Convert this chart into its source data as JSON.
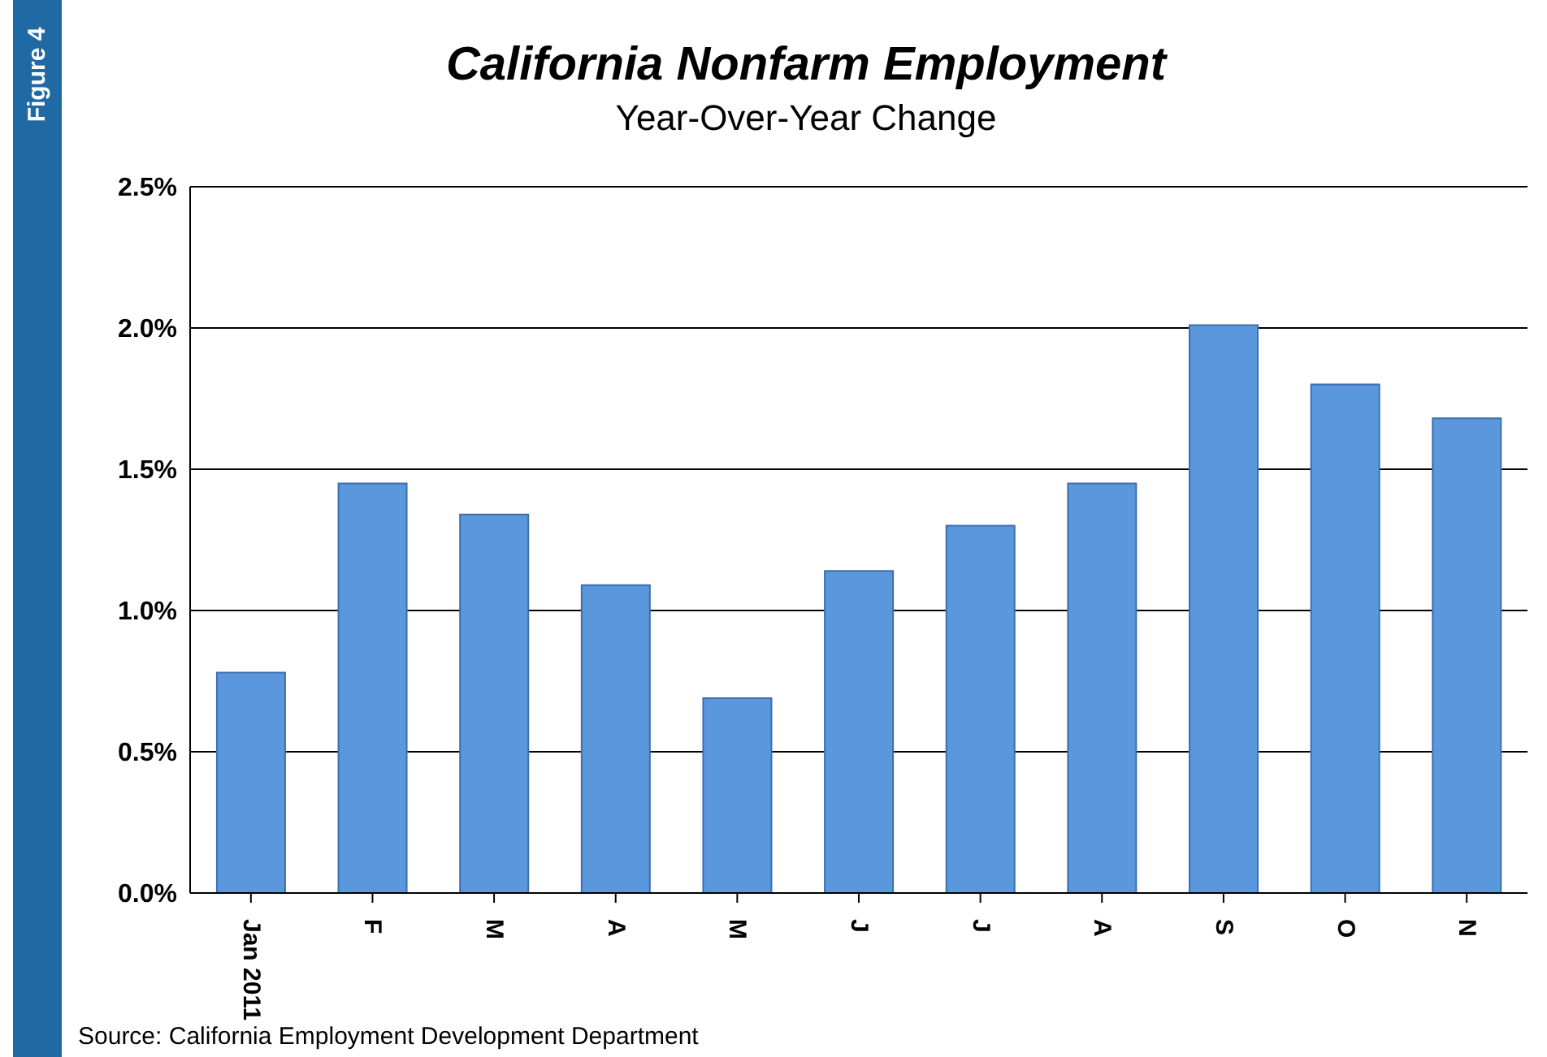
{
  "chart_data": {
    "type": "bar",
    "title": "California Nonfarm Employment",
    "subtitle": "Year-Over-Year Change",
    "categories": [
      "Jan 2011",
      "F",
      "M",
      "A",
      "M",
      "J",
      "J",
      "A",
      "S",
      "O",
      "N"
    ],
    "values": [
      0.78,
      1.45,
      1.34,
      1.09,
      0.69,
      1.14,
      1.3,
      1.45,
      2.01,
      1.8,
      1.68
    ],
    "color": "#5b97dd",
    "ylim": [
      0,
      2.5
    ],
    "yticks": [
      {
        "value": 0,
        "label": "0.0%"
      },
      {
        "value": 0.5,
        "label": "0.5%"
      },
      {
        "value": 1,
        "label": "1.0%"
      },
      {
        "value": 1.5,
        "label": "1.5%"
      },
      {
        "value": 2,
        "label": "2.0%"
      },
      {
        "value": 2.5,
        "label": "2.5%"
      }
    ],
    "grid": "y",
    "annotations": [
      "Figure 4",
      "Source: California Employment Development Department"
    ]
  }
}
